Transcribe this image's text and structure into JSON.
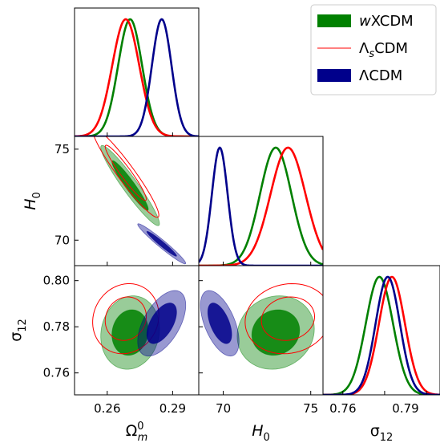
{
  "chart_data": {
    "type": "triangle-corner-plot",
    "parameters": [
      {
        "name": "Omega_m0",
        "label_base": "Ω",
        "label_sub": "m",
        "label_sup": "0",
        "range": [
          0.245,
          0.302
        ],
        "ticks": [
          0.26,
          0.29
        ],
        "tick_labels": [
          "0.26",
          "0.29"
        ]
      },
      {
        "name": "H0",
        "label_base": "H",
        "label_sub": "0",
        "label_sup": "",
        "range": [
          68.6,
          75.7
        ],
        "ticks": [
          70,
          75
        ],
        "tick_labels": [
          "70",
          "75"
        ]
      },
      {
        "name": "sigma12",
        "label_base": "σ",
        "label_sub": "12",
        "label_sup": "",
        "range": [
          0.7505,
          0.8065
        ],
        "ticks": [
          0.76,
          0.78,
          0.8
        ],
        "tick_labels": [
          "0.76",
          "0.78",
          "0.80"
        ]
      }
    ],
    "x_tick_labels_bottom": {
      "Omega_m0": [
        "0.26",
        "0.29"
      ],
      "H0": [
        "70",
        "75"
      ],
      "sigma12": [
        "0.76",
        "0.79"
      ]
    },
    "y_tick_labels_left": {
      "H0": [
        "75",
        "70"
      ],
      "sigma12": [
        "0.80",
        "0.78",
        "0.76"
      ]
    },
    "legend": {
      "placement": "top-right",
      "entries": [
        {
          "id": "wxcdm",
          "label_italic": "w",
          "label_rest": "XCDM",
          "label_sub": "",
          "style": "filled",
          "color": "#008000"
        },
        {
          "id": "lscdm",
          "label_italic": "",
          "label_rest": "Λ",
          "label_sub": "s",
          "label_tail": "CDM",
          "style": "line",
          "color": "#ff0000"
        },
        {
          "id": "lcdm",
          "label_italic": "",
          "label_rest": "ΛCDM",
          "label_sub": "",
          "style": "filled",
          "color": "#00008b"
        }
      ]
    },
    "series": [
      {
        "id": "wxcdm",
        "color": "#008000",
        "fill": "#008000",
        "mean": {
          "Omega_m0": 0.2705,
          "H0": 73.0,
          "sigma12": 0.7775
        },
        "sd": {
          "Omega_m0": 0.0055,
          "H0": 0.9,
          "sigma12": 0.0065
        },
        "corr": {
          "Omega_m0_H0": -0.95,
          "Omega_m0_sigma12": 0.1,
          "H0_sigma12": 0.1
        }
      },
      {
        "id": "lscdm",
        "color": "#ff0000",
        "fill": "none",
        "mean": {
          "Omega_m0": 0.2685,
          "H0": 73.7,
          "sigma12": 0.7835
        },
        "sd": {
          "Omega_m0": 0.0062,
          "H0": 1.0,
          "sigma12": 0.0062
        },
        "corr": {
          "Omega_m0_H0": -0.95,
          "Omega_m0_sigma12": 0.1,
          "H0_sigma12": 0.1
        }
      },
      {
        "id": "lcdm",
        "color": "#00008b",
        "fill": "#00008b",
        "mean": {
          "Omega_m0": 0.285,
          "H0": 69.8,
          "sigma12": 0.7815
        },
        "sd": {
          "Omega_m0": 0.0045,
          "H0": 0.45,
          "sigma12": 0.0058
        },
        "corr": {
          "Omega_m0_H0": -0.97,
          "Omega_m0_sigma12": 0.55,
          "H0_sigma12": -0.55
        }
      }
    ]
  }
}
